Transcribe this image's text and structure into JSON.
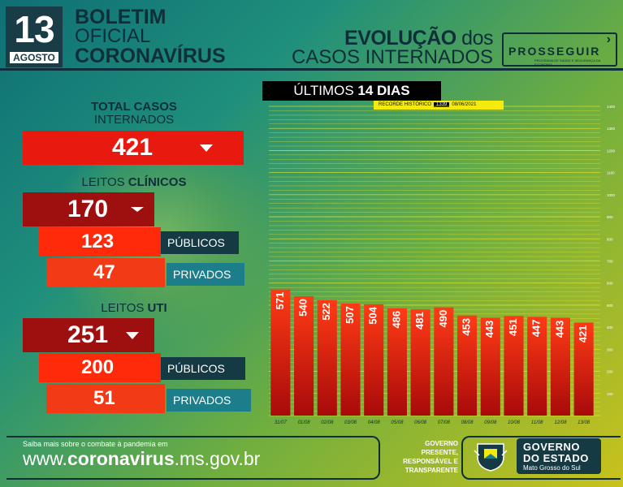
{
  "header": {
    "day": "13",
    "month": "AGOSTO",
    "title_l1": "BOLETIM",
    "title_l2": "OFICIAL",
    "title_l3": "CORONAVÍRUS",
    "evol_bold": "EVOLUÇÃO",
    "evol_rest": " dos",
    "evol_l2": "CASOS INTERNADOS",
    "prosseguir": "PROSSEGUIR",
    "prosseguir_sub": "PROGRAMA DE SAÚDE E SEGURANÇA DA ECONOMIA"
  },
  "summary": {
    "total_label_1": "TOTAL CASOS",
    "total_label_2": "INTERNADOS",
    "total_value": "421",
    "clinicos_label_pre": "LEITOS ",
    "clinicos_label_bold": "CLÍNICOS",
    "clinicos_value": "170",
    "clinicos_publicos": "123",
    "clinicos_privados": "47",
    "uti_label_pre": "LEITOS ",
    "uti_label_bold": "UTI",
    "uti_value": "251",
    "uti_publicos": "200",
    "uti_privados": "51",
    "publicos_label": "PÚBLICOS",
    "privados_label": "PRIVADOS"
  },
  "banner": {
    "pre": "ÚLTIMOS ",
    "bold": "14 DIAS",
    "recorde_label": "RECORDE HISTÓRICO",
    "recorde_value": "1339",
    "recorde_date": "08/06/2021"
  },
  "chart_data": {
    "type": "bar",
    "categories": [
      "31/07",
      "01/08",
      "02/08",
      "03/08",
      "04/08",
      "05/08",
      "06/08",
      "07/08",
      "08/08",
      "09/08",
      "10/08",
      "11/08",
      "12/08",
      "13/08"
    ],
    "values": [
      571,
      540,
      522,
      507,
      504,
      486,
      481,
      490,
      453,
      443,
      451,
      447,
      443,
      421
    ],
    "ylim": [
      0,
      1400
    ],
    "yticks": [
      100,
      200,
      300,
      400,
      500,
      600,
      700,
      800,
      900,
      1000,
      1100,
      1200,
      1300,
      1400
    ],
    "grid": true,
    "colors": {
      "bar_top": "#ff3b16",
      "bar_bottom": "#a80a0a",
      "grid": "#f2ee2a"
    }
  },
  "footer": {
    "saiba": "Saiba mais sobre o combate à pandemia em",
    "url_pre": "www.",
    "url_bold": "coronavirus",
    "url_post": ".ms.gov.br",
    "gov_slogan": [
      "GOVERNO",
      "PRESENTE,",
      "RESPONSÁVEL E",
      "TRANSPARENTE"
    ],
    "gov_l1": "GOVERNO",
    "gov_l2": "DO ESTADO",
    "gov_l3": "Mato Grosso do Sul"
  },
  "colors": {
    "dark": "#0e2f3a",
    "red": "#e8190e",
    "dark_red": "#9e0f10",
    "teal": "#1b7e8a"
  }
}
